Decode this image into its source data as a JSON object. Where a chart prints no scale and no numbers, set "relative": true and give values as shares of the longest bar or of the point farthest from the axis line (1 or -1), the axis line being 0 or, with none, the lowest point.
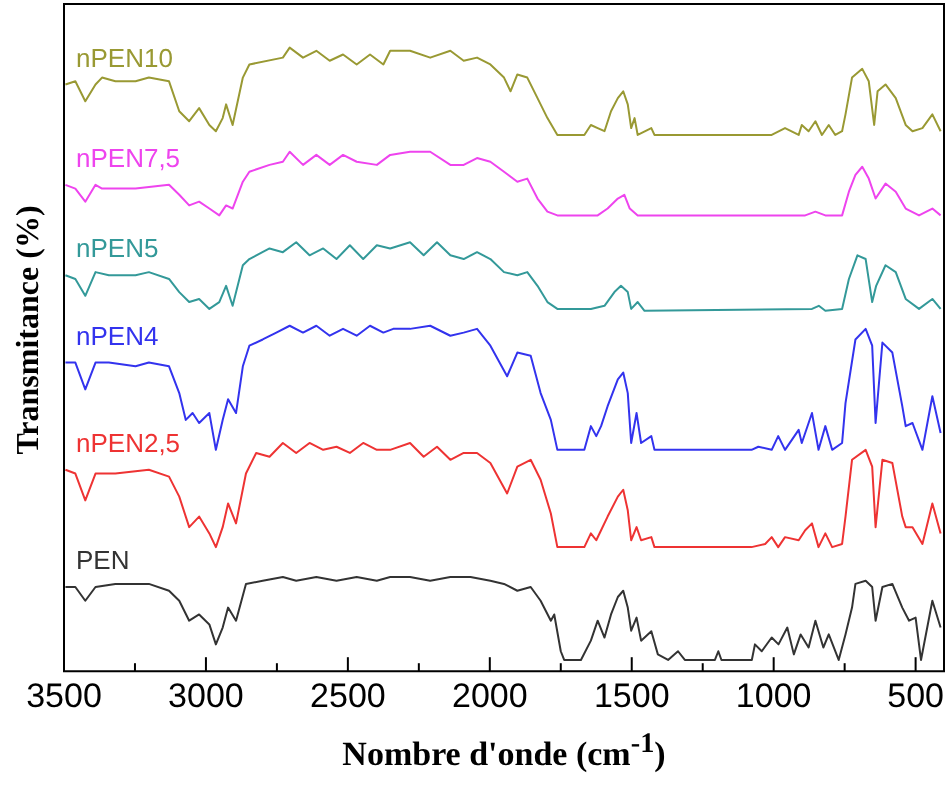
{
  "chart_data": {
    "type": "line",
    "xlabel": "Nombre d'onde (cm$^{-1}$)",
    "ylabel": "Transmitance (%)",
    "relative": true,
    "legend": false,
    "marker": "none",
    "xlim": [
      3500,
      400
    ],
    "xticks": [
      3500,
      {
        "value": 3250,
        "label": null
      },
      3000,
      {
        "value": 2750,
        "label": null
      },
      2500,
      {
        "value": 2250,
        "label": null
      },
      2000,
      {
        "value": 1750,
        "label": null
      },
      1500,
      {
        "value": 1250,
        "label": null
      },
      1000,
      {
        "value": 750,
        "label": null
      },
      500
    ],
    "series": [
      {
        "name": "nPEN10",
        "color": "#999933",
        "x": [
          3495,
          3460,
          3425,
          3389,
          3366,
          3319,
          3248,
          3201,
          3130,
          3094,
          3059,
          3024,
          2988,
          2965,
          2941,
          2929,
          2906,
          2870,
          2847,
          2729,
          2705,
          2658,
          2611,
          2564,
          2517,
          2469,
          2422,
          2375,
          2351,
          2281,
          2210,
          2139,
          2092,
          2045,
          1998,
          1950,
          1927,
          1903,
          1868,
          1832,
          1797,
          1762,
          1667,
          1644,
          1620,
          1596,
          1573,
          1549,
          1530,
          1514,
          1502,
          1490,
          1479,
          1431,
          1420,
          1007,
          960,
          912,
          901,
          877,
          853,
          830,
          806,
          783,
          759,
          747,
          724,
          688,
          665,
          646,
          634,
          606,
          570,
          535,
          511,
          476,
          441,
          412
        ],
        "values": [
          0.941,
          0.946,
          0.914,
          0.941,
          0.952,
          0.946,
          0.946,
          0.952,
          0.946,
          0.898,
          0.882,
          0.903,
          0.876,
          0.866,
          0.887,
          0.909,
          0.876,
          0.952,
          0.973,
          0.984,
          1.0,
          0.984,
          0.995,
          0.979,
          0.989,
          0.973,
          0.989,
          0.973,
          0.995,
          0.995,
          0.984,
          0.995,
          0.979,
          0.984,
          0.973,
          0.952,
          0.93,
          0.957,
          0.952,
          0.919,
          0.887,
          0.86,
          0.86,
          0.876,
          0.871,
          0.866,
          0.898,
          0.919,
          0.93,
          0.909,
          0.871,
          0.887,
          0.86,
          0.871,
          0.86,
          0.86,
          0.871,
          0.86,
          0.876,
          0.866,
          0.882,
          0.86,
          0.876,
          0.86,
          0.866,
          0.893,
          0.952,
          0.966,
          0.946,
          0.876,
          0.93,
          0.941,
          0.919,
          0.876,
          0.866,
          0.871,
          0.893,
          0.866
        ]
      },
      {
        "name": "nPEN7,5",
        "color": "#ee44ee",
        "x": [
          3495,
          3460,
          3425,
          3389,
          3366,
          3319,
          3248,
          3130,
          3094,
          3059,
          3024,
          2988,
          2953,
          2929,
          2906,
          2870,
          2847,
          2776,
          2729,
          2705,
          2658,
          2611,
          2564,
          2517,
          2469,
          2398,
          2351,
          2281,
          2210,
          2139,
          2092,
          2045,
          1998,
          1950,
          1903,
          1868,
          1832,
          1797,
          1762,
          1620,
          1585,
          1549,
          1526,
          1507,
          1479,
          889,
          853,
          818,
          759,
          735,
          712,
          688,
          665,
          641,
          606,
          570,
          535,
          488,
          441,
          412
        ],
        "values": [
          0.78,
          0.774,
          0.753,
          0.78,
          0.774,
          0.774,
          0.774,
          0.78,
          0.764,
          0.747,
          0.753,
          0.742,
          0.731,
          0.747,
          0.742,
          0.785,
          0.801,
          0.812,
          0.817,
          0.833,
          0.812,
          0.828,
          0.812,
          0.828,
          0.817,
          0.812,
          0.828,
          0.833,
          0.833,
          0.812,
          0.812,
          0.823,
          0.817,
          0.801,
          0.785,
          0.79,
          0.758,
          0.737,
          0.731,
          0.731,
          0.742,
          0.758,
          0.764,
          0.742,
          0.731,
          0.731,
          0.737,
          0.731,
          0.731,
          0.769,
          0.796,
          0.809,
          0.79,
          0.758,
          0.782,
          0.769,
          0.742,
          0.731,
          0.742,
          0.731
        ]
      },
      {
        "name": "nPEN5",
        "color": "#339999",
        "x": [
          3495,
          3460,
          3425,
          3389,
          3342,
          3248,
          3201,
          3130,
          3094,
          3059,
          3024,
          2988,
          2953,
          2929,
          2906,
          2870,
          2847,
          2776,
          2729,
          2682,
          2635,
          2587,
          2540,
          2493,
          2446,
          2398,
          2351,
          2281,
          2233,
          2186,
          2139,
          2092,
          2045,
          1998,
          1950,
          1903,
          1868,
          1832,
          1797,
          1762,
          1644,
          1596,
          1561,
          1538,
          1514,
          1502,
          1479,
          1455,
          865,
          841,
          818,
          759,
          735,
          705,
          676,
          653,
          639,
          606,
          570,
          535,
          488,
          441,
          412
        ],
        "values": [
          0.635,
          0.629,
          0.602,
          0.64,
          0.635,
          0.635,
          0.64,
          0.629,
          0.608,
          0.592,
          0.597,
          0.581,
          0.592,
          0.618,
          0.586,
          0.651,
          0.661,
          0.678,
          0.672,
          0.688,
          0.667,
          0.678,
          0.661,
          0.683,
          0.661,
          0.683,
          0.678,
          0.688,
          0.667,
          0.688,
          0.667,
          0.661,
          0.672,
          0.661,
          0.64,
          0.635,
          0.64,
          0.618,
          0.592,
          0.581,
          0.581,
          0.586,
          0.608,
          0.618,
          0.608,
          0.581,
          0.592,
          0.578,
          0.581,
          0.586,
          0.578,
          0.581,
          0.629,
          0.667,
          0.661,
          0.592,
          0.618,
          0.651,
          0.64,
          0.597,
          0.581,
          0.597,
          0.581
        ]
      },
      {
        "name": "nPEN4",
        "color": "#3333ee",
        "x": [
          3495,
          3460,
          3425,
          3389,
          3342,
          3248,
          3201,
          3130,
          3094,
          3071,
          3047,
          3024,
          2988,
          2965,
          2941,
          2922,
          2894,
          2870,
          2847,
          2800,
          2752,
          2705,
          2658,
          2611,
          2564,
          2517,
          2469,
          2422,
          2375,
          2340,
          2281,
          2210,
          2139,
          2092,
          2045,
          1998,
          1939,
          1903,
          1856,
          1821,
          1785,
          1762,
          1667,
          1644,
          1625,
          1608,
          1585,
          1549,
          1530,
          1514,
          1502,
          1483,
          1467,
          1431,
          1420,
          1078,
          1054,
          1007,
          984,
          960,
          912,
          901,
          865,
          842,
          818,
          794,
          759,
          747,
          712,
          676,
          653,
          641,
          617,
          582,
          547,
          535,
          511,
          476,
          441,
          412
        ],
        "values": [
          0.495,
          0.495,
          0.452,
          0.495,
          0.495,
          0.489,
          0.495,
          0.489,
          0.446,
          0.403,
          0.414,
          0.398,
          0.414,
          0.355,
          0.403,
          0.436,
          0.414,
          0.489,
          0.522,
          0.532,
          0.543,
          0.554,
          0.543,
          0.554,
          0.538,
          0.549,
          0.538,
          0.554,
          0.543,
          0.549,
          0.549,
          0.554,
          0.538,
          0.543,
          0.549,
          0.522,
          0.473,
          0.511,
          0.506,
          0.446,
          0.403,
          0.355,
          0.355,
          0.393,
          0.377,
          0.393,
          0.425,
          0.468,
          0.479,
          0.446,
          0.366,
          0.414,
          0.366,
          0.377,
          0.355,
          0.355,
          0.36,
          0.355,
          0.377,
          0.355,
          0.387,
          0.366,
          0.414,
          0.355,
          0.393,
          0.355,
          0.366,
          0.43,
          0.532,
          0.549,
          0.522,
          0.398,
          0.527,
          0.511,
          0.425,
          0.393,
          0.398,
          0.355,
          0.441,
          0.382
        ]
      },
      {
        "name": "nPEN2,5",
        "color": "#ee3333",
        "x": [
          3495,
          3460,
          3425,
          3389,
          3319,
          3201,
          3130,
          3094,
          3059,
          3024,
          2988,
          2965,
          2941,
          2922,
          2894,
          2859,
          2823,
          2776,
          2729,
          2682,
          2635,
          2587,
          2540,
          2493,
          2446,
          2398,
          2351,
          2281,
          2233,
          2186,
          2139,
          2092,
          2045,
          1998,
          1939,
          1903,
          1856,
          1821,
          1785,
          1762,
          1667,
          1644,
          1625,
          1608,
          1585,
          1549,
          1530,
          1514,
          1502,
          1483,
          1467,
          1431,
          1420,
          1078,
          1030,
          1007,
          984,
          960,
          912,
          889,
          865,
          842,
          818,
          794,
          759,
          747,
          724,
          676,
          653,
          641,
          617,
          582,
          547,
          535,
          511,
          476,
          441,
          412
        ],
        "values": [
          0.323,
          0.317,
          0.274,
          0.317,
          0.317,
          0.323,
          0.312,
          0.28,
          0.231,
          0.248,
          0.221,
          0.199,
          0.231,
          0.269,
          0.237,
          0.317,
          0.35,
          0.344,
          0.366,
          0.35,
          0.366,
          0.355,
          0.36,
          0.35,
          0.366,
          0.355,
          0.355,
          0.366,
          0.344,
          0.36,
          0.339,
          0.35,
          0.35,
          0.334,
          0.285,
          0.328,
          0.339,
          0.307,
          0.253,
          0.199,
          0.199,
          0.221,
          0.21,
          0.226,
          0.248,
          0.28,
          0.291,
          0.258,
          0.21,
          0.231,
          0.21,
          0.215,
          0.199,
          0.199,
          0.204,
          0.215,
          0.199,
          0.215,
          0.21,
          0.226,
          0.237,
          0.199,
          0.221,
          0.199,
          0.204,
          0.248,
          0.339,
          0.355,
          0.328,
          0.231,
          0.339,
          0.334,
          0.248,
          0.231,
          0.231,
          0.204,
          0.269,
          0.221
        ]
      },
      {
        "name": "PEN",
        "color": "#333333",
        "x": [
          3495,
          3460,
          3425,
          3389,
          3319,
          3201,
          3130,
          3094,
          3059,
          3024,
          2988,
          2965,
          2941,
          2922,
          2894,
          2859,
          2800,
          2729,
          2682,
          2611,
          2540,
          2469,
          2398,
          2351,
          2281,
          2210,
          2139,
          2068,
          1998,
          1950,
          1903,
          1856,
          1821,
          1785,
          1773,
          1750,
          1738,
          1679,
          1644,
          1620,
          1596,
          1573,
          1549,
          1530,
          1514,
          1502,
          1483,
          1467,
          1431,
          1408,
          1372,
          1337,
          1313,
          1207,
          1195,
          1184,
          1077,
          1066,
          1042,
          1007,
          983,
          952,
          929,
          905,
          877,
          853,
          825,
          806,
          771,
          747,
          724,
          712,
          676,
          653,
          641,
          617,
          582,
          547,
          523,
          500,
          481,
          441,
          412
        ],
        "values": [
          0.135,
          0.135,
          0.113,
          0.135,
          0.14,
          0.14,
          0.129,
          0.113,
          0.081,
          0.091,
          0.075,
          0.043,
          0.07,
          0.102,
          0.081,
          0.14,
          0.145,
          0.151,
          0.145,
          0.151,
          0.145,
          0.151,
          0.145,
          0.151,
          0.151,
          0.145,
          0.151,
          0.151,
          0.145,
          0.14,
          0.129,
          0.135,
          0.113,
          0.081,
          0.091,
          0.032,
          0.018,
          0.018,
          0.049,
          0.081,
          0.054,
          0.091,
          0.119,
          0.129,
          0.102,
          0.065,
          0.086,
          0.049,
          0.064,
          0.027,
          0.018,
          0.032,
          0.018,
          0.018,
          0.032,
          0.018,
          0.018,
          0.043,
          0.032,
          0.054,
          0.043,
          0.07,
          0.027,
          0.059,
          0.038,
          0.081,
          0.038,
          0.059,
          0.018,
          0.059,
          0.102,
          0.14,
          0.145,
          0.135,
          0.081,
          0.135,
          0.14,
          0.102,
          0.081,
          0.086,
          0.018,
          0.113,
          0.07
        ]
      }
    ]
  }
}
